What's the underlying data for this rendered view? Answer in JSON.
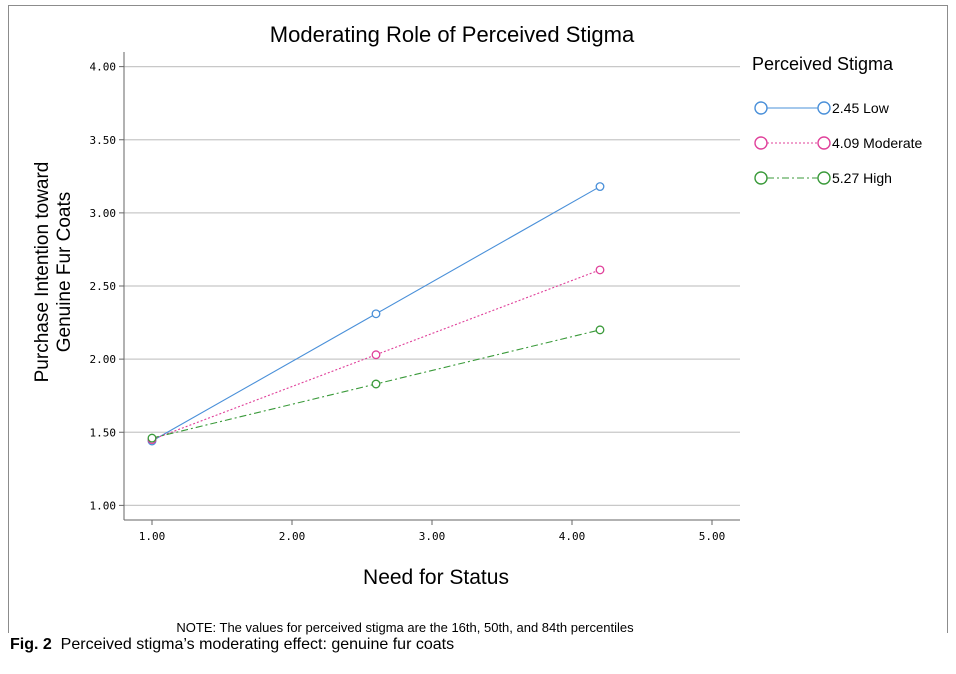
{
  "chart_data": {
    "type": "line",
    "title": "Moderating Role of Perceived Stigma",
    "xlabel": "Need for Status",
    "ylabel_lines": [
      "Purchase Intention toward",
      "Genuine Fur Coats"
    ],
    "xlim": [
      0.8,
      5.2
    ],
    "ylim": [
      0.9,
      4.1
    ],
    "x_ticks": [
      "1.00",
      "2.00",
      "3.00",
      "4.00",
      "5.00"
    ],
    "y_ticks": [
      "1.00",
      "1.50",
      "2.00",
      "2.50",
      "3.00",
      "3.50",
      "4.00"
    ],
    "x": [
      1.0,
      2.6,
      4.2
    ],
    "grid": "horizontal",
    "legend_title": "Perceived Stigma",
    "legend_position": "right",
    "series": [
      {
        "name": "2.45 Low",
        "values": [
          1.44,
          2.31,
          3.18
        ],
        "color": "#4a90d9",
        "dash": "solid"
      },
      {
        "name": "4.09 Moderate",
        "values": [
          1.45,
          2.03,
          2.61
        ],
        "color": "#e0409a",
        "dash": "dotted"
      },
      {
        "name": "5.27 High",
        "values": [
          1.46,
          1.83,
          2.2
        ],
        "color": "#3a9a3a",
        "dash": "dashdot"
      }
    ]
  },
  "note": "NOTE: The values for perceived stigma are the 16th, 50th, and 84th percentiles",
  "caption": {
    "label": "Fig. 2",
    "text": "Perceived stigma’s moderating effect: genuine fur coats"
  }
}
